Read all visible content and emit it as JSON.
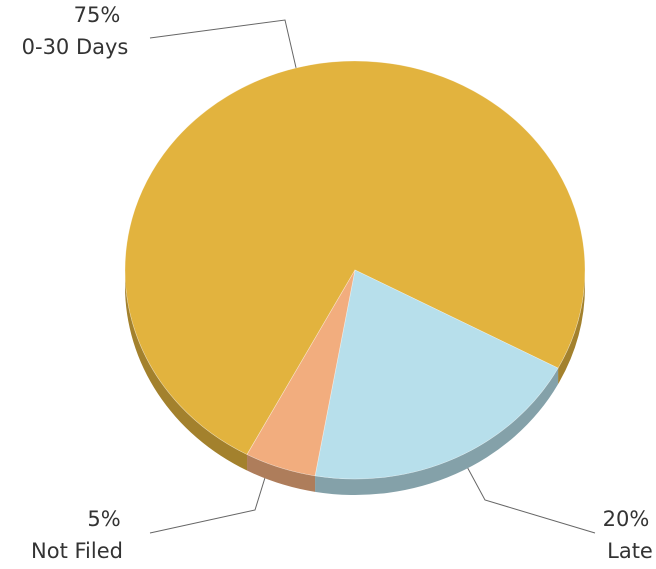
{
  "chart_data": {
    "type": "pie",
    "categories": [
      "0-30 Days",
      "Late",
      "Not Filed"
    ],
    "values": [
      75,
      20,
      5
    ],
    "value_labels": [
      "75%",
      "20%",
      "5%"
    ],
    "colors": [
      "#e2b33e",
      "#b7dfeb",
      "#f2ad7e"
    ]
  }
}
